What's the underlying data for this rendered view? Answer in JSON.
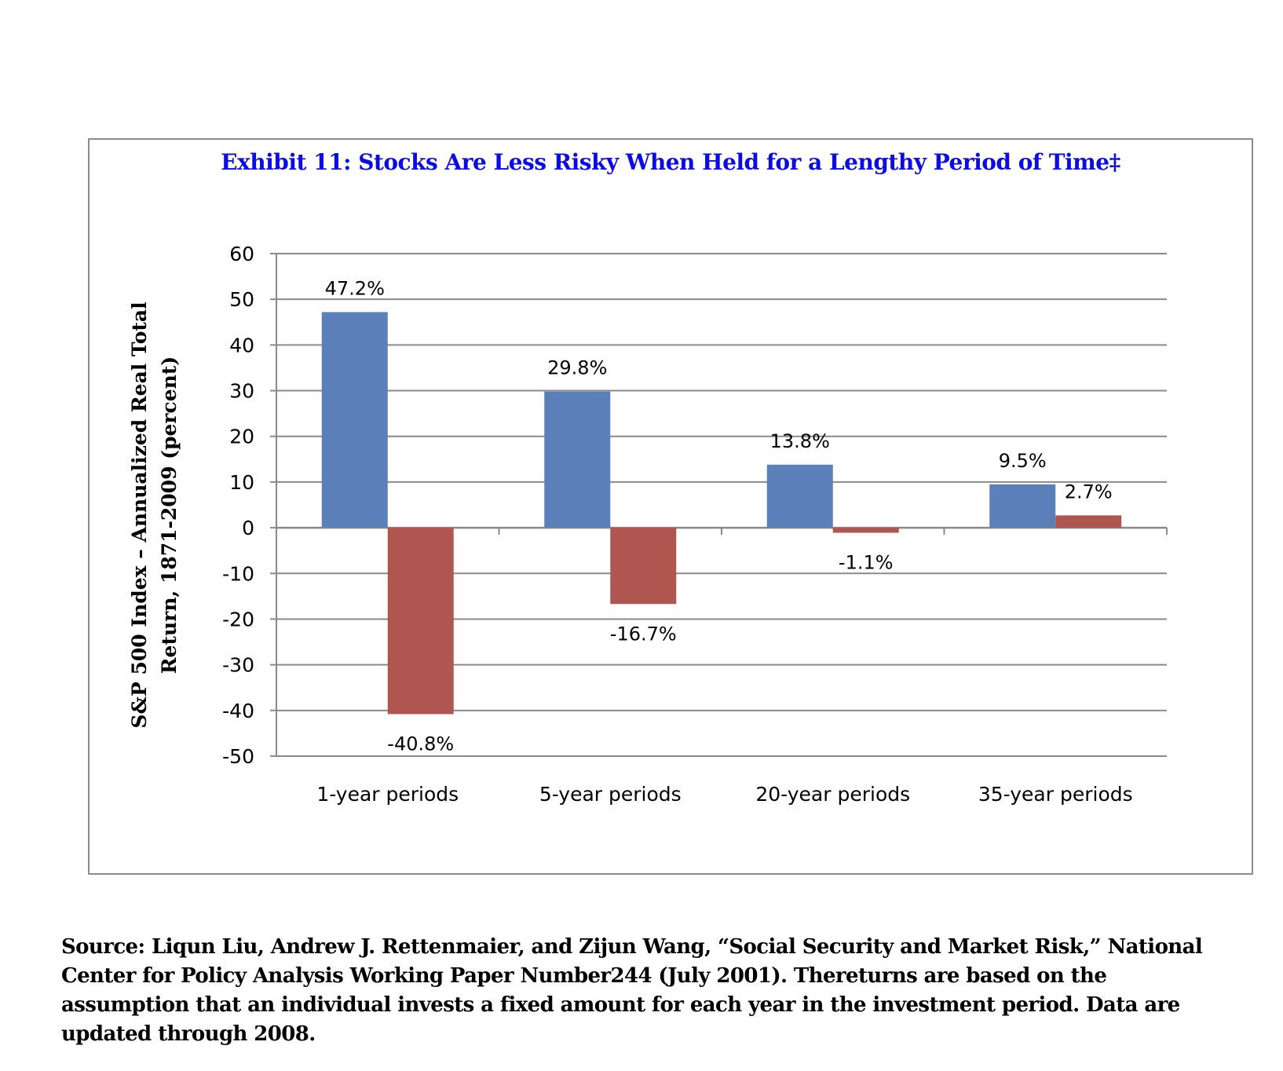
{
  "chart_data": {
    "type": "bar",
    "title": "Exhibit 11: Stocks Are Less Risky When Held for a Lengthy Period of Time‡",
    "ylabel_lines": [
      "S&P 500 Index – Annualized Real Total",
      "Return, 1871-2009 (percent)"
    ],
    "xlabel": "",
    "categories": [
      "1-year periods",
      "5-year periods",
      "20-year periods",
      "35-year periods"
    ],
    "series": [
      {
        "color": "#5b7fb8",
        "values": [
          47.2,
          29.8,
          13.8,
          9.5
        ],
        "labels": [
          "47.2%",
          "29.8%",
          "13.8%",
          "9.5%"
        ]
      },
      {
        "color": "#b05650",
        "values": [
          -40.8,
          -16.7,
          -1.1,
          2.7
        ],
        "labels": [
          "-40.8%",
          "-16.7%",
          "-1.1%",
          "2.7%"
        ]
      }
    ],
    "ylim": [
      -50,
      60
    ],
    "yticks": [
      60,
      50,
      40,
      30,
      20,
      10,
      0,
      -10,
      -20,
      -30,
      -40,
      -50
    ],
    "grid": true,
    "legend": "none"
  },
  "source_note": "Source: Liqun Liu, Andrew J. Rettenmaier, and Zijun Wang, “Social Security and Market Risk,” National Center for Policy Analysis Working Paper Number244 (July 2001). Thereturns are based on the assumption that an individual invests a fixed amount for each year in the investment period. Data are updated through 2008."
}
